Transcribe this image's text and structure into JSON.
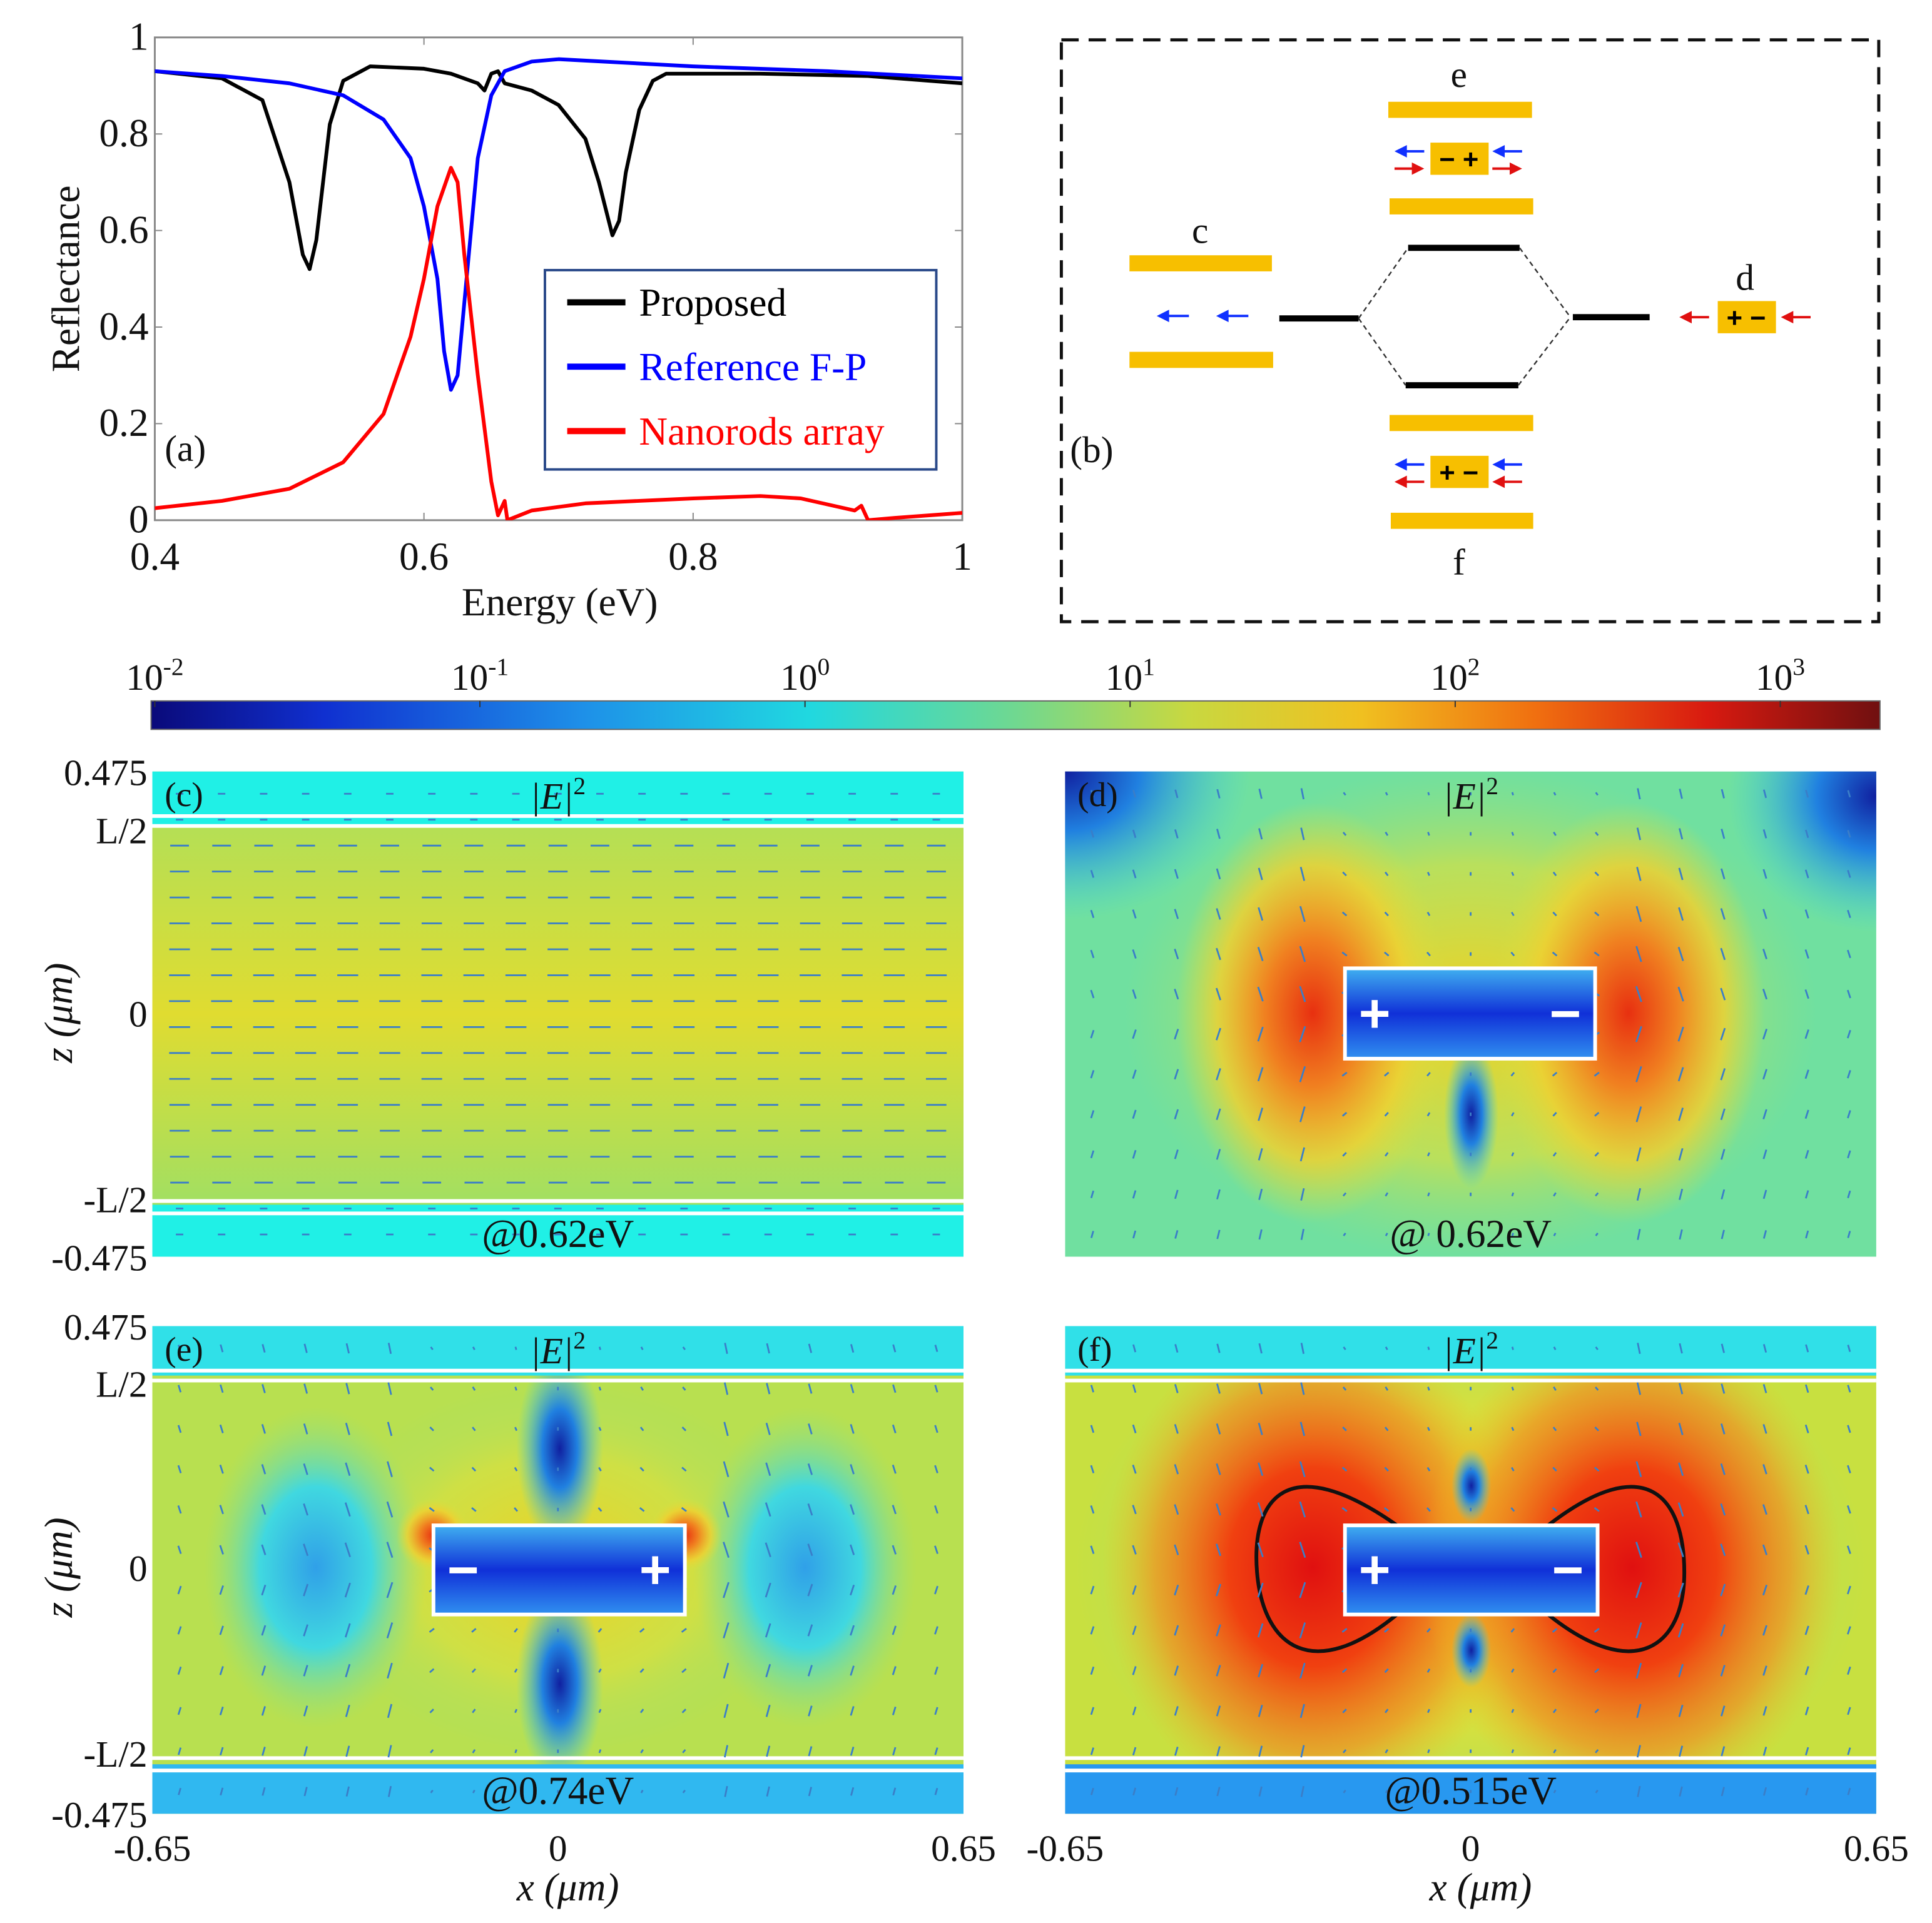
{
  "chart_data": {
    "type": "line",
    "panel_label": "(a)",
    "xlabel": "Energy (eV)",
    "ylabel": "Reflectance",
    "xlim": [
      0.4,
      1.0
    ],
    "ylim": [
      0,
      1
    ],
    "xticks": [
      "0.4",
      "0.6",
      "0.8",
      "1"
    ],
    "yticks": [
      "0",
      "0.2",
      "0.4",
      "0.6",
      "0.8",
      "1"
    ],
    "legend_position": "center-right",
    "grid": false,
    "series": [
      {
        "name": "Proposed",
        "color": "#000000",
        "x": [
          0.4,
          0.45,
          0.48,
          0.5,
          0.51,
          0.515,
          0.52,
          0.53,
          0.54,
          0.56,
          0.6,
          0.62,
          0.64,
          0.645,
          0.65,
          0.655,
          0.66,
          0.68,
          0.7,
          0.72,
          0.73,
          0.74,
          0.745,
          0.75,
          0.76,
          0.77,
          0.78,
          0.85,
          0.93,
          1.0
        ],
        "y": [
          0.93,
          0.915,
          0.87,
          0.7,
          0.55,
          0.52,
          0.58,
          0.82,
          0.91,
          0.94,
          0.935,
          0.925,
          0.905,
          0.89,
          0.925,
          0.93,
          0.905,
          0.89,
          0.86,
          0.79,
          0.7,
          0.59,
          0.62,
          0.72,
          0.85,
          0.91,
          0.925,
          0.925,
          0.92,
          0.905
        ]
      },
      {
        "name": "Reference F-P",
        "color": "#0000ff",
        "x": [
          0.4,
          0.45,
          0.5,
          0.54,
          0.57,
          0.59,
          0.6,
          0.61,
          0.615,
          0.62,
          0.625,
          0.63,
          0.64,
          0.65,
          0.66,
          0.68,
          0.7,
          0.8,
          0.9,
          1.0
        ],
        "y": [
          0.93,
          0.92,
          0.905,
          0.88,
          0.83,
          0.75,
          0.65,
          0.5,
          0.35,
          0.27,
          0.3,
          0.45,
          0.75,
          0.88,
          0.93,
          0.95,
          0.955,
          0.94,
          0.93,
          0.915
        ]
      },
      {
        "name": "Nanorods array",
        "color": "#ff0000",
        "x": [
          0.4,
          0.45,
          0.5,
          0.54,
          0.57,
          0.59,
          0.6,
          0.61,
          0.62,
          0.625,
          0.63,
          0.64,
          0.65,
          0.655,
          0.66,
          0.662,
          0.68,
          0.72,
          0.8,
          0.85,
          0.88,
          0.92,
          0.925,
          0.93,
          0.95,
          1.0
        ],
        "y": [
          0.025,
          0.04,
          0.065,
          0.12,
          0.22,
          0.38,
          0.5,
          0.65,
          0.73,
          0.7,
          0.55,
          0.3,
          0.08,
          0.01,
          0.04,
          0.0,
          0.02,
          0.035,
          0.045,
          0.05,
          0.045,
          0.02,
          0.03,
          0.0,
          0.005,
          0.015
        ]
      }
    ]
  },
  "diagram_b": {
    "panel_label": "(b)",
    "labels": {
      "c": "c",
      "d": "d",
      "e": "e",
      "f": "f"
    },
    "rod_e_charges": "− +",
    "rod_f_charges": "+ −",
    "rod_d_charges": "+ −",
    "gold_color": "#f7bf00"
  },
  "colorbar": {
    "ticks": [
      {
        "base": "10",
        "exp": "-2"
      },
      {
        "base": "10",
        "exp": "-1"
      },
      {
        "base": "10",
        "exp": "0"
      },
      {
        "base": "10",
        "exp": "1"
      },
      {
        "base": "10",
        "exp": "2"
      },
      {
        "base": "10",
        "exp": "3"
      }
    ],
    "colormap": "jet"
  },
  "field_panels": {
    "quantity_base": "|E|",
    "quantity_exp": "2",
    "ylabel": "z (μm)",
    "xlabel": "x (μm)",
    "yticks": [
      "0.475",
      "L/2",
      "0",
      "-L/2",
      "-0.475"
    ],
    "xticks": [
      "-0.65",
      "0",
      "0.65"
    ],
    "panels": [
      {
        "label": "(c)",
        "energy": "@0.62eV",
        "plus": "",
        "minus": ""
      },
      {
        "label": "(d)",
        "energy": "@ 0.62eV",
        "plus": "+",
        "minus": "−"
      },
      {
        "label": "(e)",
        "energy": "@0.74eV",
        "plus": "+",
        "minus": "−"
      },
      {
        "label": "(f)",
        "energy": "@0.515eV",
        "plus": "+",
        "minus": "−"
      }
    ]
  }
}
